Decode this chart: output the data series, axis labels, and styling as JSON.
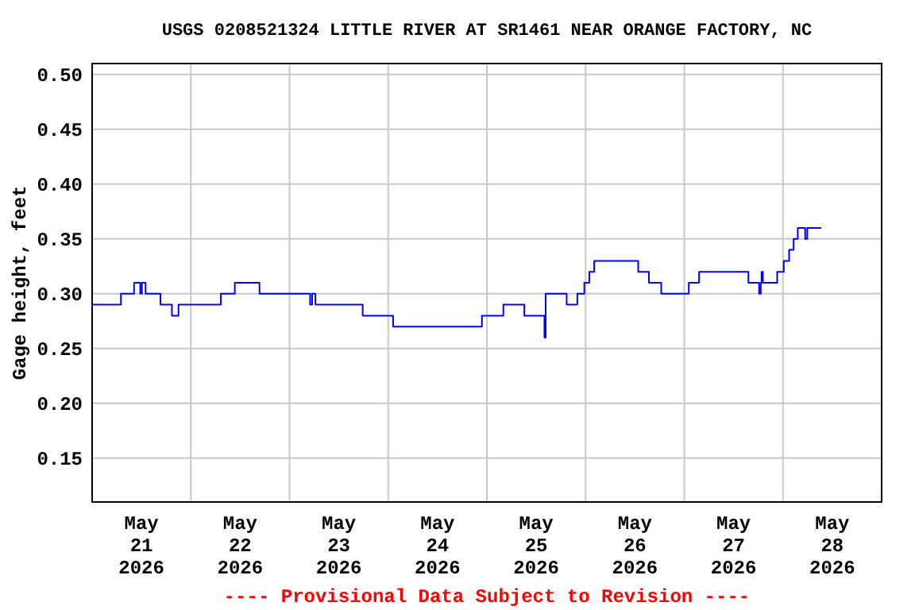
{
  "chart_data": {
    "type": "step",
    "title": "USGS 0208521324 LITTLE RIVER AT SR1461 NEAR ORANGE FACTORY, NC",
    "ylabel": "Gage height, feet",
    "annotations": [
      "---- Provisional Data Subject to Revision ----"
    ],
    "xlim": [
      "2026-05-21T00:00",
      "2026-05-29T00:00"
    ],
    "xticks": [
      {
        "value": "2026-05-21T12:00",
        "label": "May\n21\n2026"
      },
      {
        "value": "2026-05-22T00:00",
        "label": null
      },
      {
        "value": "2026-05-22T12:00",
        "label": "May\n22\n2026"
      },
      {
        "value": "2026-05-23T00:00",
        "label": null
      },
      {
        "value": "2026-05-23T12:00",
        "label": "May\n23\n2026"
      },
      {
        "value": "2026-05-24T00:00",
        "label": null
      },
      {
        "value": "2026-05-24T12:00",
        "label": "May\n24\n2026"
      },
      {
        "value": "2026-05-25T00:00",
        "label": null
      },
      {
        "value": "2026-05-25T12:00",
        "label": "May\n25\n2026"
      },
      {
        "value": "2026-05-26T00:00",
        "label": null
      },
      {
        "value": "2026-05-26T12:00",
        "label": "May\n26\n2026"
      },
      {
        "value": "2026-05-27T00:00",
        "label": null
      },
      {
        "value": "2026-05-27T12:00",
        "label": "May\n27\n2026"
      },
      {
        "value": "2026-05-28T00:00",
        "label": null
      },
      {
        "value": "2026-05-28T12:00",
        "label": "May\n28\n2026"
      }
    ],
    "ylim": [
      0.11,
      0.51
    ],
    "yticks": [
      {
        "value": 0.15,
        "label": "0.15"
      },
      {
        "value": 0.2,
        "label": "0.20"
      },
      {
        "value": 0.25,
        "label": "0.25"
      },
      {
        "value": 0.3,
        "label": "0.30"
      },
      {
        "value": 0.35,
        "label": "0.35"
      },
      {
        "value": 0.4,
        "label": "0.40"
      },
      {
        "value": 0.45,
        "label": "0.45"
      },
      {
        "value": 0.5,
        "label": "0.50"
      }
    ],
    "grid": true,
    "series": [
      {
        "color": "#0000ff",
        "x": [
          "2026-05-21T00:00",
          "2026-05-21T07:00",
          "2026-05-21T10:12",
          "2026-05-21T11:42",
          "2026-05-21T12:06",
          "2026-05-21T13:00",
          "2026-05-21T16:36",
          "2026-05-21T19:24",
          "2026-05-21T21:00",
          "2026-05-22T07:18",
          "2026-05-22T10:42",
          "2026-05-22T16:42",
          "2026-05-23T05:00",
          "2026-05-23T05:30",
          "2026-05-23T06:18",
          "2026-05-23T17:48",
          "2026-05-24T01:12",
          "2026-05-24T22:48",
          "2026-05-25T04:00",
          "2026-05-25T09:06",
          "2026-05-25T14:00",
          "2026-05-25T14:18",
          "2026-05-25T19:24",
          "2026-05-25T22:00",
          "2026-05-25T23:42",
          "2026-05-26T00:54",
          "2026-05-26T02:06",
          "2026-05-26T12:48",
          "2026-05-26T15:24",
          "2026-05-26T18:24",
          "2026-05-27T01:06",
          "2026-05-27T03:36",
          "2026-05-27T15:36",
          "2026-05-27T18:12",
          "2026-05-27T18:36",
          "2026-05-27T18:48",
          "2026-05-27T19:06",
          "2026-05-27T22:36",
          "2026-05-28T00:12",
          "2026-05-28T01:30",
          "2026-05-28T02:36",
          "2026-05-28T03:36",
          "2026-05-28T05:24",
          "2026-05-28T05:54",
          "2026-05-28T09:18"
        ],
        "values": [
          0.29,
          0.3,
          0.31,
          0.3,
          0.31,
          0.3,
          0.29,
          0.28,
          0.29,
          0.3,
          0.31,
          0.3,
          0.29,
          0.3,
          0.29,
          0.28,
          0.27,
          0.28,
          0.29,
          0.28,
          0.26,
          0.3,
          0.29,
          0.3,
          0.31,
          0.32,
          0.33,
          0.32,
          0.31,
          0.3,
          0.31,
          0.32,
          0.31,
          0.3,
          0.31,
          0.32,
          0.31,
          0.32,
          0.33,
          0.34,
          0.35,
          0.36,
          0.35,
          0.36,
          0.36
        ]
      }
    ]
  }
}
